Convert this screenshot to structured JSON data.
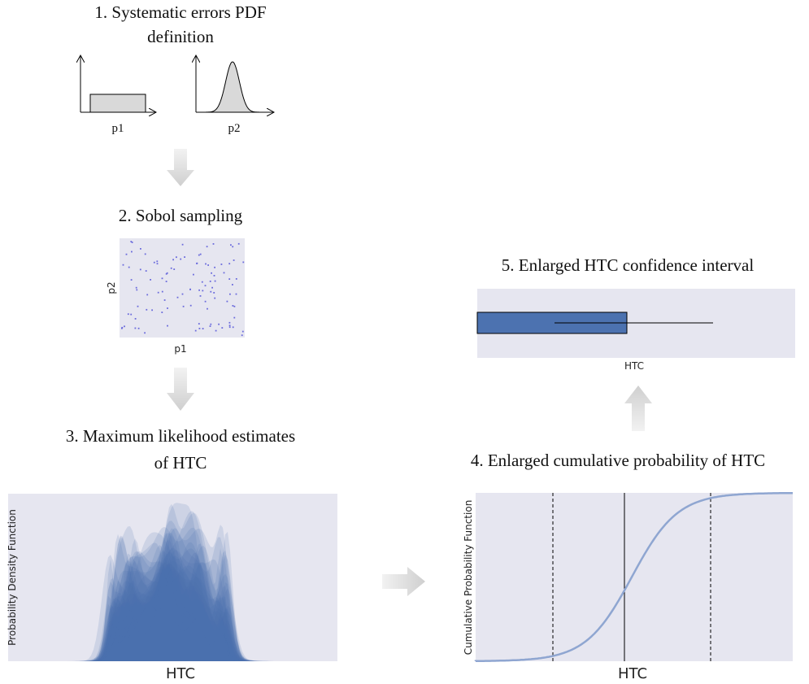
{
  "steps": [
    {
      "title": [
        "1. Systematic errors PDF",
        "definition"
      ],
      "panels": [
        {
          "x_label": "p1"
        },
        {
          "x_label": "p2"
        }
      ]
    },
    {
      "title": [
        "2. Sobol sampling"
      ],
      "x_label": "p1",
      "y_label": "p2"
    },
    {
      "title": [
        "3. Maximum likelihood estimates",
        "of HTC"
      ],
      "x_label": "HTC",
      "y_label": "Probability Density Function"
    },
    {
      "title": [
        "4. Enlarged cumulative probability of HTC"
      ],
      "x_label": "HTC",
      "y_label": "Cumulative Probability Function"
    },
    {
      "title": [
        "5. Enlarged HTC confidence interval"
      ],
      "x_label": "HTC"
    }
  ]
}
